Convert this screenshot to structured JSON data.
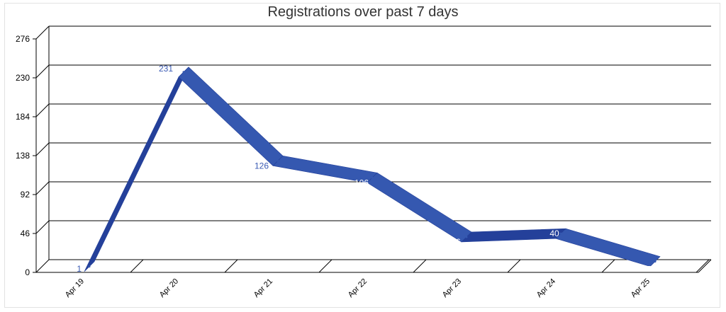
{
  "chart_data": {
    "type": "line",
    "title": "Registrations over past 7 days",
    "xlabel": "",
    "ylabel": "",
    "categories": [
      "Apr 19",
      "Apr 20",
      "Apr 21",
      "Apr 22",
      "Apr 23",
      "Apr 24",
      "Apr 25"
    ],
    "series": [
      {
        "values": [
          1,
          231,
          126,
          106,
          36,
          40,
          7
        ]
      }
    ],
    "y_ticks": [
      "0",
      "46",
      "92",
      "138",
      "184",
      "230",
      "276"
    ],
    "ylim": [
      0,
      276
    ],
    "grid": true,
    "three_d": true,
    "colors": {
      "series": "#3558b0",
      "series_shadow": "#24409a",
      "label_dark": "#3a5ab4",
      "label_light": "#ffffff",
      "grid": "#000000"
    }
  }
}
